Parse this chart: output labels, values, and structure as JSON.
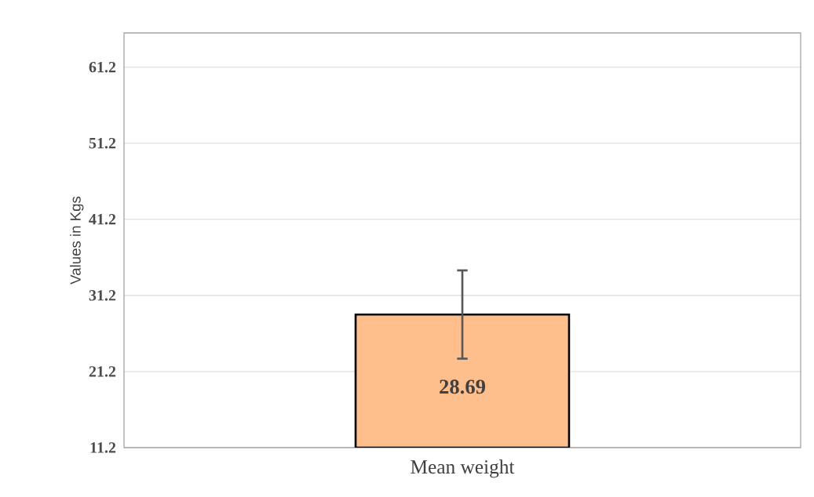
{
  "chart_data": {
    "type": "bar",
    "ylabel": "Values in Kgs",
    "categories": [
      "Mean weight"
    ],
    "values": [
      28.69
    ],
    "errors": [
      5.8
    ],
    "value_labels": [
      "28.69"
    ],
    "color": "#ffbf8c",
    "ylim": [
      11.2,
      65.7
    ],
    "yticks": [
      11.2,
      21.2,
      31.2,
      41.2,
      51.2,
      61.2
    ],
    "grid": "y"
  }
}
